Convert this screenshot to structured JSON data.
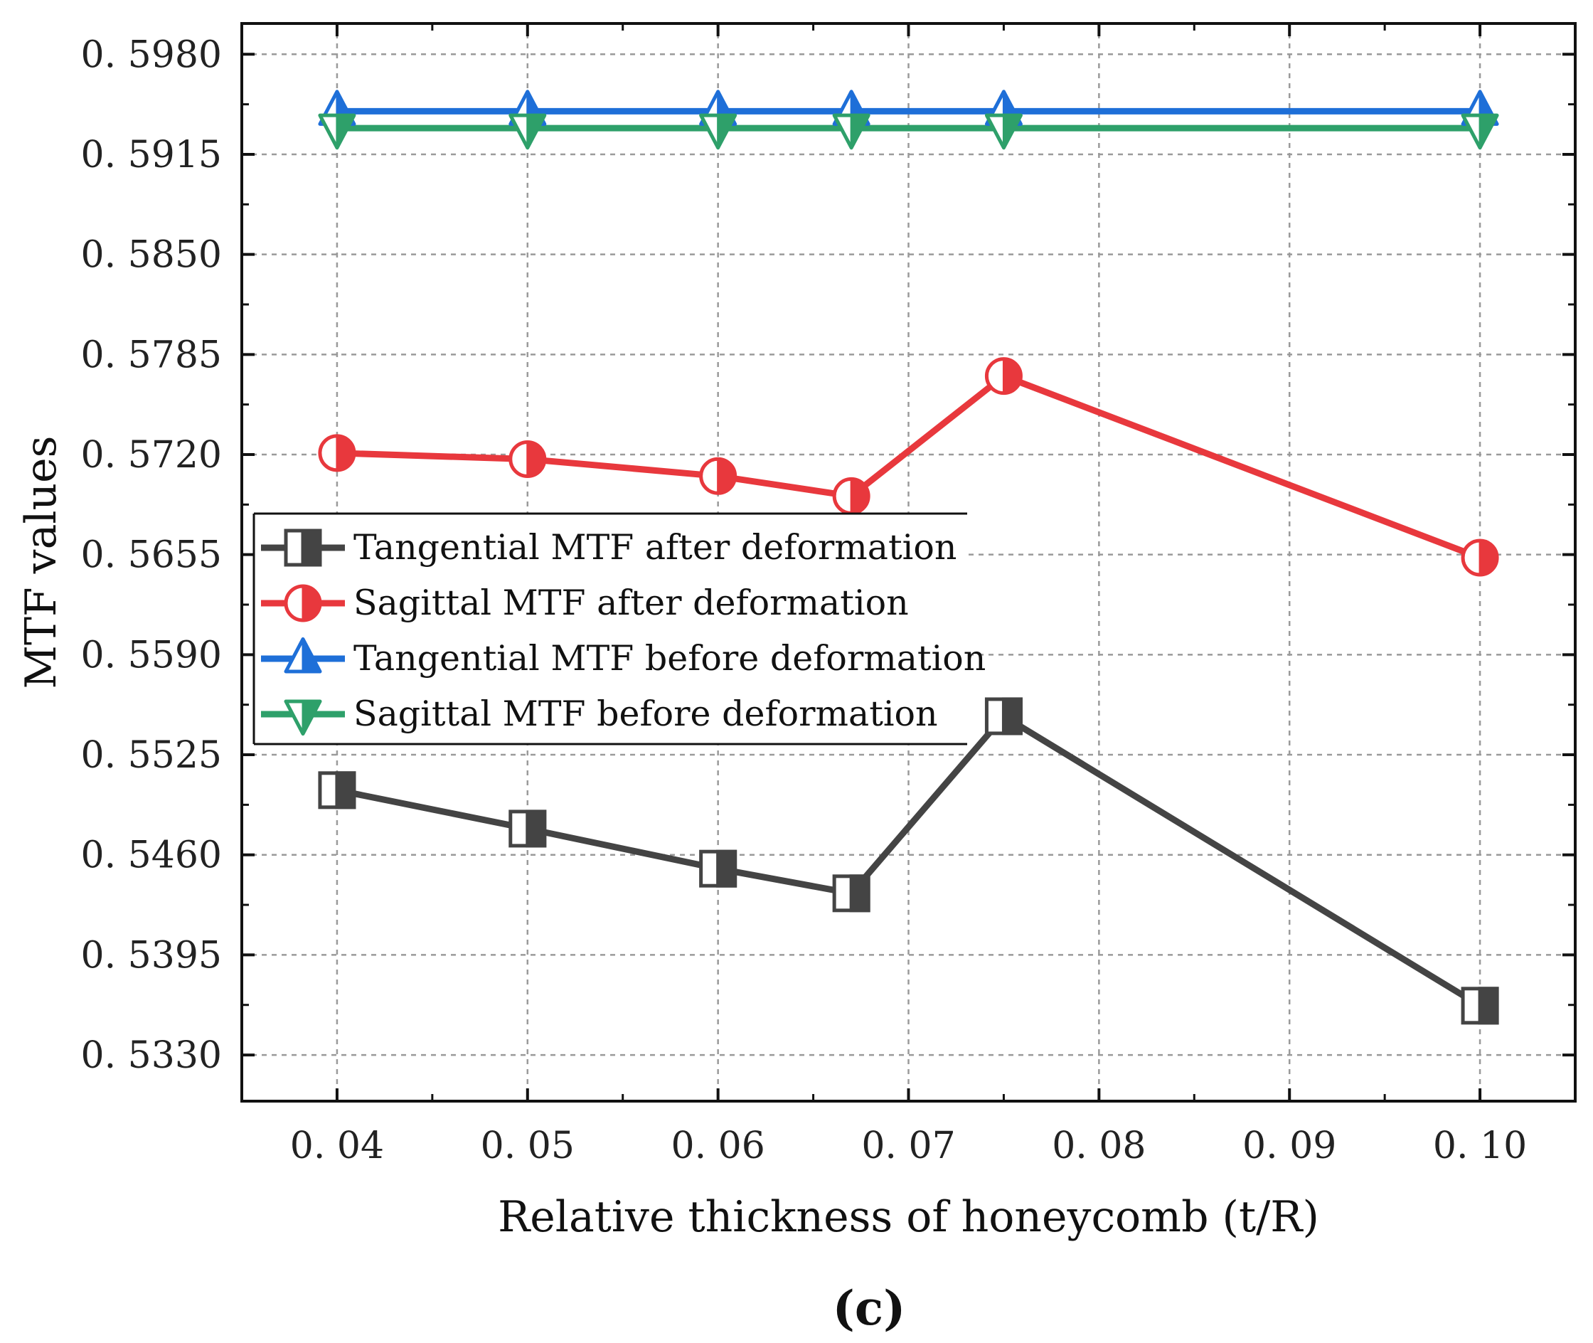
{
  "chart_data": {
    "type": "line",
    "title": "",
    "xlabel": "Relative thickness of honeycomb (t/R)",
    "ylabel": "MTF values",
    "caption": "(c)",
    "x": [
      0.04,
      0.05,
      0.06,
      0.067,
      0.075,
      0.1
    ],
    "xlim": [
      0.035,
      0.105
    ],
    "ylim": [
      0.53,
      0.6
    ],
    "xticks": [
      0.04,
      0.05,
      0.06,
      0.07,
      0.08,
      0.09,
      0.1
    ],
    "xtick_labels": [
      "0. 04",
      "0. 05",
      "0. 06",
      "0. 07",
      "0. 08",
      "0. 09",
      "0. 10"
    ],
    "yticks": [
      0.533,
      0.5395,
      0.546,
      0.5525,
      0.559,
      0.5655,
      0.572,
      0.5785,
      0.585,
      0.5915,
      0.598
    ],
    "ytick_labels": [
      "0. 5330",
      "0. 5395",
      "0. 5460",
      "0. 5525",
      "0. 5590",
      "0. 5655",
      "0. 5720",
      "0. 5785",
      "0. 5850",
      "0. 5915",
      "0. 5980"
    ],
    "grid": true,
    "legend_position": "center-left",
    "series": [
      {
        "name": "Tangential MTF after deformation",
        "color": "#444444",
        "marker": "half-square",
        "values": [
          0.5502,
          0.5477,
          0.5451,
          0.5435,
          0.555,
          0.5362
        ]
      },
      {
        "name": "Sagittal MTF after deformation",
        "color": "#e8383d",
        "marker": "half-circle",
        "values": [
          0.5721,
          0.5717,
          0.5706,
          0.5693,
          0.5771,
          0.5653
        ]
      },
      {
        "name": "Tangential MTF before deformation",
        "color": "#1e6fd8",
        "marker": "half-triangle-up",
        "values": [
          0.5943,
          0.5943,
          0.5943,
          0.5943,
          0.5943,
          0.5943
        ]
      },
      {
        "name": "Sagittal MTF before deformation",
        "color": "#2ea06a",
        "marker": "half-triangle-down",
        "values": [
          0.5932,
          0.5932,
          0.5932,
          0.5932,
          0.5932,
          0.5932
        ]
      }
    ]
  }
}
